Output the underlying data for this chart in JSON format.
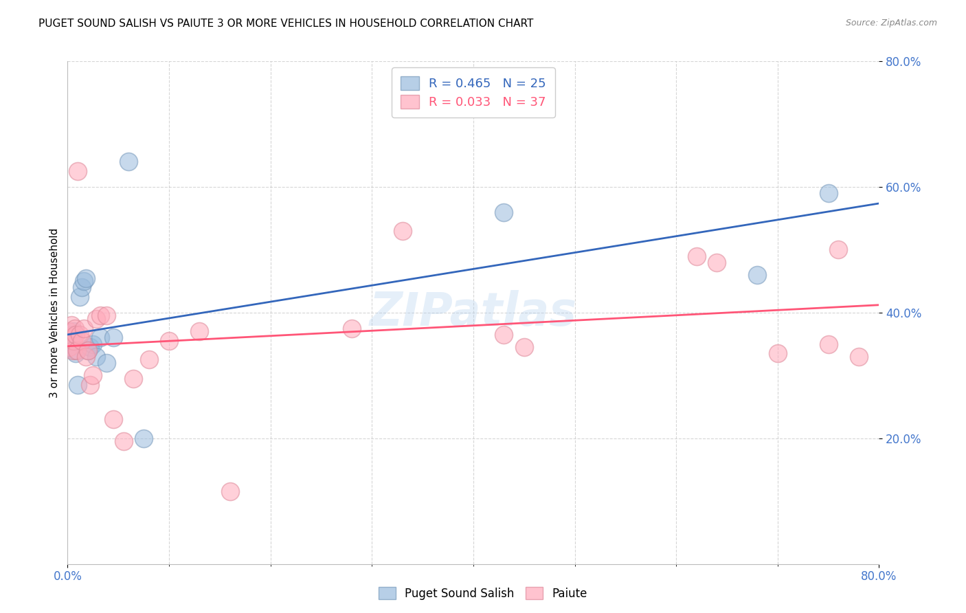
{
  "title": "PUGET SOUND SALISH VS PAIUTE 3 OR MORE VEHICLES IN HOUSEHOLD CORRELATION CHART",
  "source": "Source: ZipAtlas.com",
  "ylabel": "3 or more Vehicles in Household",
  "xlim": [
    0,
    0.8
  ],
  "ylim": [
    0,
    0.8
  ],
  "ytick_vals": [
    0.2,
    0.4,
    0.6,
    0.8
  ],
  "blue_R": 0.465,
  "blue_N": 25,
  "pink_R": 0.033,
  "pink_N": 37,
  "blue_color": "#99BBDD",
  "pink_color": "#FFAABB",
  "blue_edge_color": "#7799BB",
  "pink_edge_color": "#DD8899",
  "blue_line_color": "#3366BB",
  "pink_line_color": "#FF5577",
  "watermark": "ZIPatlas",
  "blue_label": "Puget Sound Salish",
  "pink_label": "Paiute",
  "blue_x": [
    0.001,
    0.002,
    0.003,
    0.004,
    0.005,
    0.006,
    0.007,
    0.008,
    0.01,
    0.012,
    0.014,
    0.016,
    0.018,
    0.02,
    0.022,
    0.025,
    0.028,
    0.032,
    0.038,
    0.045,
    0.06,
    0.075,
    0.43,
    0.68,
    0.75
  ],
  "blue_y": [
    0.345,
    0.35,
    0.355,
    0.365,
    0.36,
    0.37,
    0.34,
    0.335,
    0.285,
    0.425,
    0.44,
    0.45,
    0.455,
    0.34,
    0.345,
    0.35,
    0.33,
    0.36,
    0.32,
    0.36,
    0.64,
    0.2,
    0.56,
    0.46,
    0.59
  ],
  "pink_x": [
    0.001,
    0.002,
    0.003,
    0.004,
    0.005,
    0.006,
    0.007,
    0.008,
    0.009,
    0.01,
    0.012,
    0.014,
    0.016,
    0.018,
    0.02,
    0.022,
    0.025,
    0.028,
    0.032,
    0.038,
    0.045,
    0.055,
    0.065,
    0.08,
    0.1,
    0.13,
    0.16,
    0.28,
    0.33,
    0.43,
    0.45,
    0.62,
    0.64,
    0.7,
    0.75,
    0.76,
    0.78
  ],
  "pink_y": [
    0.37,
    0.345,
    0.36,
    0.38,
    0.34,
    0.355,
    0.375,
    0.365,
    0.34,
    0.625,
    0.365,
    0.355,
    0.375,
    0.33,
    0.34,
    0.285,
    0.3,
    0.39,
    0.395,
    0.395,
    0.23,
    0.195,
    0.295,
    0.325,
    0.355,
    0.37,
    0.115,
    0.375,
    0.53,
    0.365,
    0.345,
    0.49,
    0.48,
    0.335,
    0.35,
    0.5,
    0.33
  ],
  "background_color": "#FFFFFF",
  "grid_color": "#CCCCCC",
  "axis_label_color": "#4477CC",
  "title_color": "#000000",
  "source_color": "#888888",
  "ylabel_color": "#000000"
}
